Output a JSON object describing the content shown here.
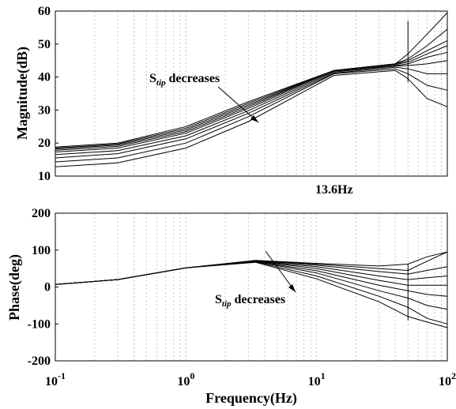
{
  "chart_data": [
    {
      "type": "line",
      "id": "magnitude",
      "ylabel": "Magnitude(dB)",
      "xscale": "log",
      "xlim": [
        0.1,
        100
      ],
      "ylim": [
        10,
        60
      ],
      "yticks": [
        "10",
        "20",
        "30",
        "40",
        "50",
        "60"
      ],
      "grid": true,
      "annotations": [
        {
          "prefix": "S",
          "subscript": "tip",
          "suffix": " decreases"
        },
        {
          "text": "13.6Hz"
        }
      ],
      "series": [
        {
          "x": [
            0.1,
            0.3,
            1,
            3,
            13.6,
            40,
            50,
            70,
            100
          ],
          "y": [
            18.8,
            20,
            25,
            32.5,
            42,
            44,
            47,
            53,
            59.5
          ]
        },
        {
          "x": [
            0.1,
            0.3,
            1,
            3,
            13.6,
            40,
            50,
            70,
            100
          ],
          "y": [
            18.5,
            19.7,
            24.5,
            32,
            42,
            44,
            45.5,
            49.5,
            54.5
          ]
        },
        {
          "x": [
            0.1,
            0.3,
            1,
            3,
            13.6,
            40,
            50,
            70,
            100
          ],
          "y": [
            18.2,
            19.4,
            24,
            31.5,
            42,
            44,
            45,
            48,
            51
          ]
        },
        {
          "x": [
            0.1,
            0.3,
            1,
            3,
            13.6,
            40,
            50,
            70,
            100
          ],
          "y": [
            17.8,
            19,
            23.5,
            31,
            42,
            43.8,
            44.5,
            47,
            49.5
          ]
        },
        {
          "x": [
            0.1,
            0.3,
            1,
            3,
            13.6,
            40,
            50,
            70,
            100
          ],
          "y": [
            17.3,
            18.5,
            23,
            30.5,
            41.8,
            43.5,
            44,
            46,
            47.5
          ]
        },
        {
          "x": [
            0.1,
            0.3,
            1,
            3,
            13.6,
            40,
            50,
            70,
            100
          ],
          "y": [
            16.5,
            17.7,
            22.2,
            29.8,
            41.5,
            43.3,
            43.5,
            44,
            45
          ]
        },
        {
          "x": [
            0.1,
            0.3,
            1,
            3,
            13.6,
            40,
            50,
            70,
            100
          ],
          "y": [
            15.5,
            16.8,
            21.3,
            29,
            41.2,
            43,
            42.5,
            41,
            41
          ]
        },
        {
          "x": [
            0.1,
            0.3,
            1,
            3,
            13.6,
            40,
            50,
            70,
            100
          ],
          "y": [
            14.3,
            15.5,
            20,
            28,
            41,
            42.5,
            41,
            37.5,
            36
          ]
        },
        {
          "x": [
            0.1,
            0.3,
            1,
            3,
            13.6,
            40,
            50,
            70,
            100
          ],
          "y": [
            12.8,
            14,
            18.5,
            26.5,
            40.5,
            42,
            39.5,
            33.5,
            31
          ]
        }
      ]
    },
    {
      "type": "line",
      "id": "phase",
      "xlabel": "Frequency(Hz)",
      "ylabel": "Phase(deg)",
      "xscale": "log",
      "xlim": [
        0.1,
        100
      ],
      "ylim": [
        -200,
        200
      ],
      "yticks": [
        "-200",
        "-100",
        "0",
        "100",
        "200"
      ],
      "xticks": [
        {
          "base": "10",
          "exp": "-1"
        },
        {
          "base": "10",
          "exp": "0"
        },
        {
          "base": "10",
          "exp": "1"
        },
        {
          "base": "10",
          "exp": "2"
        }
      ],
      "grid": true,
      "annotations": [
        {
          "prefix": "S",
          "subscript": "tip",
          "suffix": " decreases"
        }
      ],
      "series": [
        {
          "x": [
            0.1,
            0.3,
            1,
            3.4,
            10,
            30,
            50,
            70,
            100
          ],
          "y": [
            7,
            20,
            52,
            72,
            64,
            57,
            62,
            82,
            95
          ]
        },
        {
          "x": [
            0.1,
            0.3,
            1,
            3.4,
            10,
            30,
            50,
            70,
            100
          ],
          "y": [
            7,
            20,
            52,
            71,
            62,
            50,
            45,
            70,
            95
          ]
        },
        {
          "x": [
            0.1,
            0.3,
            1,
            3.4,
            10,
            30,
            50,
            70,
            100
          ],
          "y": [
            7,
            20,
            52,
            71,
            59,
            42,
            35,
            45,
            55
          ]
        },
        {
          "x": [
            0.1,
            0.3,
            1,
            3.4,
            10,
            30,
            50,
            70,
            100
          ],
          "y": [
            7,
            20,
            52,
            70,
            55,
            30,
            20,
            25,
            30
          ]
        },
        {
          "x": [
            0.1,
            0.3,
            1,
            3.4,
            10,
            30,
            50,
            70,
            100
          ],
          "y": [
            7,
            20,
            52,
            70,
            50,
            18,
            5,
            5,
            5
          ]
        },
        {
          "x": [
            0.1,
            0.3,
            1,
            3.4,
            10,
            30,
            50,
            70,
            100
          ],
          "y": [
            7,
            20,
            52,
            69,
            44,
            5,
            -10,
            -20,
            -25
          ]
        },
        {
          "x": [
            0.1,
            0.3,
            1,
            3.4,
            10,
            30,
            50,
            70,
            100
          ],
          "y": [
            7,
            20,
            52,
            69,
            38,
            -10,
            -30,
            -50,
            -60
          ]
        },
        {
          "x": [
            0.1,
            0.3,
            1,
            3.4,
            10,
            30,
            50,
            70,
            100
          ],
          "y": [
            7,
            20,
            52,
            68,
            30,
            -25,
            -55,
            -85,
            -100
          ]
        },
        {
          "x": [
            0.1,
            0.3,
            1,
            3.4,
            10,
            30,
            50,
            70,
            100
          ],
          "y": [
            7,
            20,
            52,
            67,
            22,
            -40,
            -80,
            -95,
            -110
          ]
        }
      ]
    }
  ]
}
